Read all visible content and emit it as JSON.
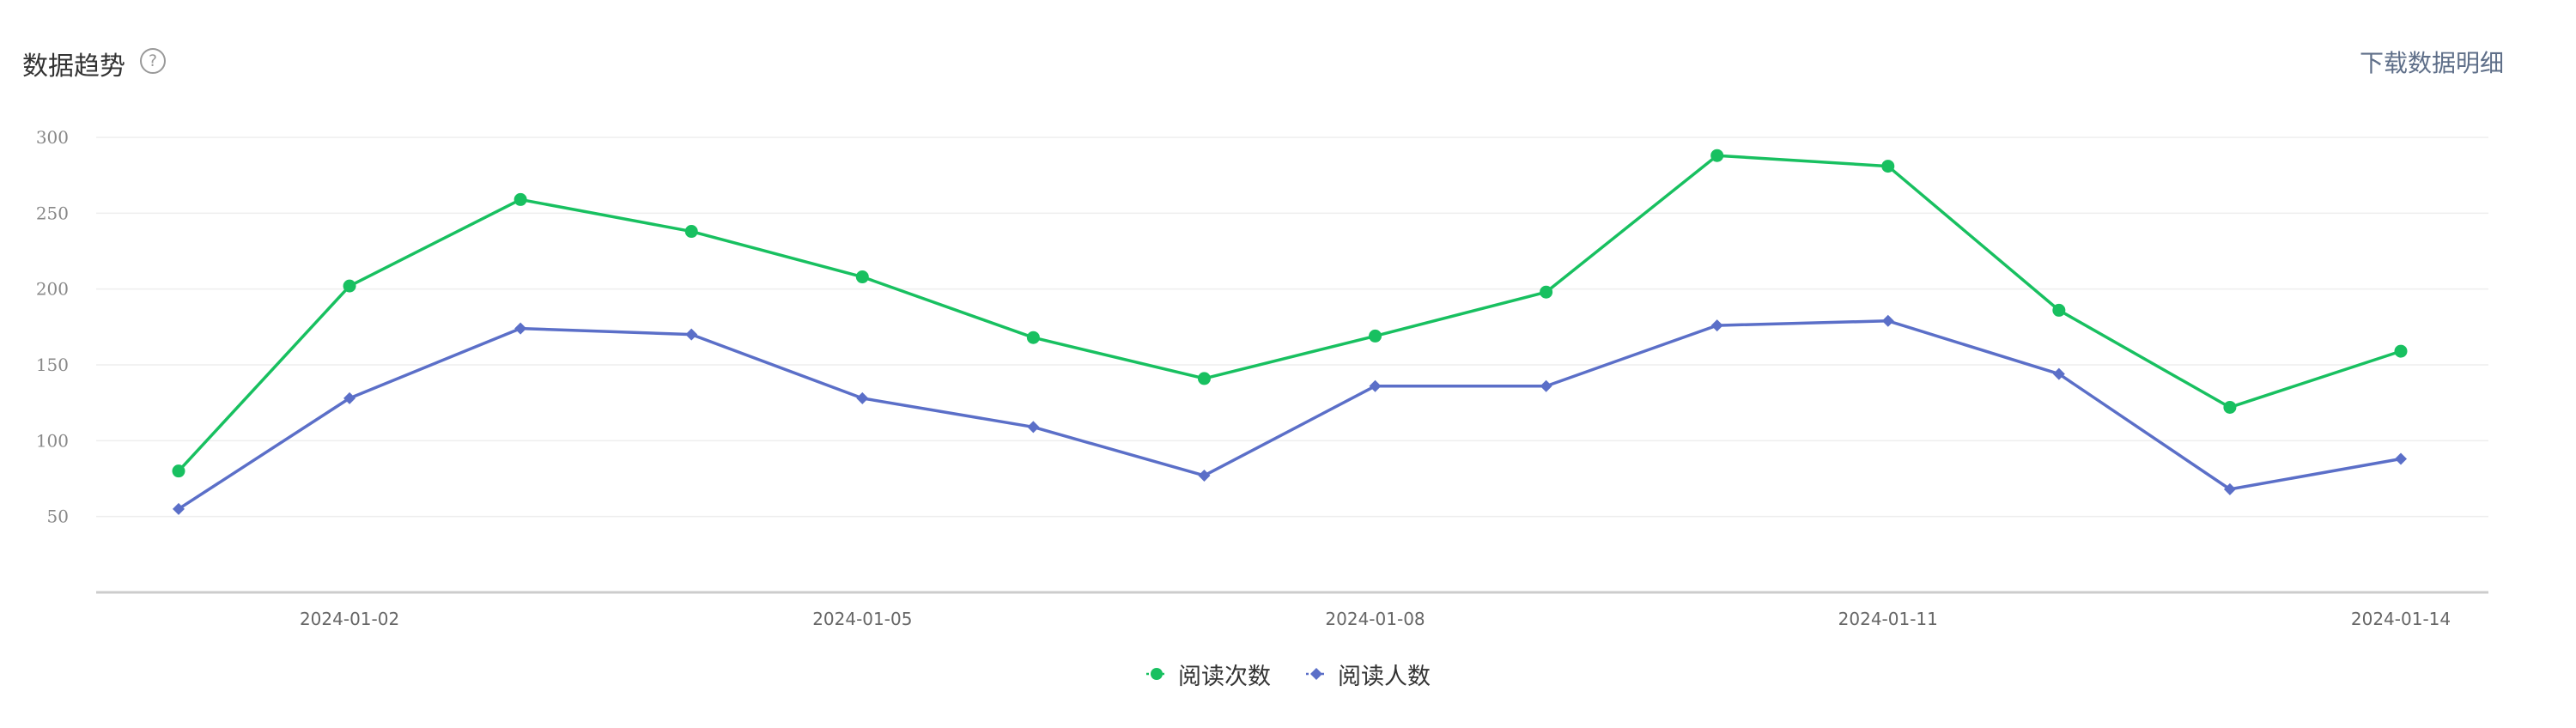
{
  "header": {
    "title": "数据趋势",
    "help_glyph": "?",
    "download_label": "下载数据明细"
  },
  "icons": {
    "help": "question-circle-icon"
  },
  "chart_data": {
    "type": "line",
    "x": [
      "2024-01-01",
      "2024-01-02",
      "2024-01-03",
      "2024-01-04",
      "2024-01-05",
      "2024-01-06",
      "2024-01-07",
      "2024-01-08",
      "2024-01-09",
      "2024-01-10",
      "2024-01-11",
      "2024-01-12",
      "2024-01-13",
      "2024-01-14"
    ],
    "x_tick_labels": [
      "2024-01-02",
      "2024-01-05",
      "2024-01-08",
      "2024-01-11",
      "2024-01-14"
    ],
    "y_ticks": [
      50,
      100,
      150,
      200,
      250,
      300
    ],
    "ylim": [
      0,
      300
    ],
    "grid": true,
    "legend_position": "bottom-center",
    "series": [
      {
        "name": "阅读次数",
        "color": "#18c060",
        "marker": "circle",
        "values": [
          80,
          202,
          259,
          238,
          208,
          168,
          141,
          169,
          198,
          288,
          281,
          186,
          122,
          159
        ]
      },
      {
        "name": "阅读人数",
        "color": "#5b6fc8",
        "marker": "diamond",
        "values": [
          55,
          128,
          174,
          170,
          128,
          109,
          77,
          136,
          136,
          176,
          179,
          144,
          68,
          88
        ]
      }
    ]
  }
}
